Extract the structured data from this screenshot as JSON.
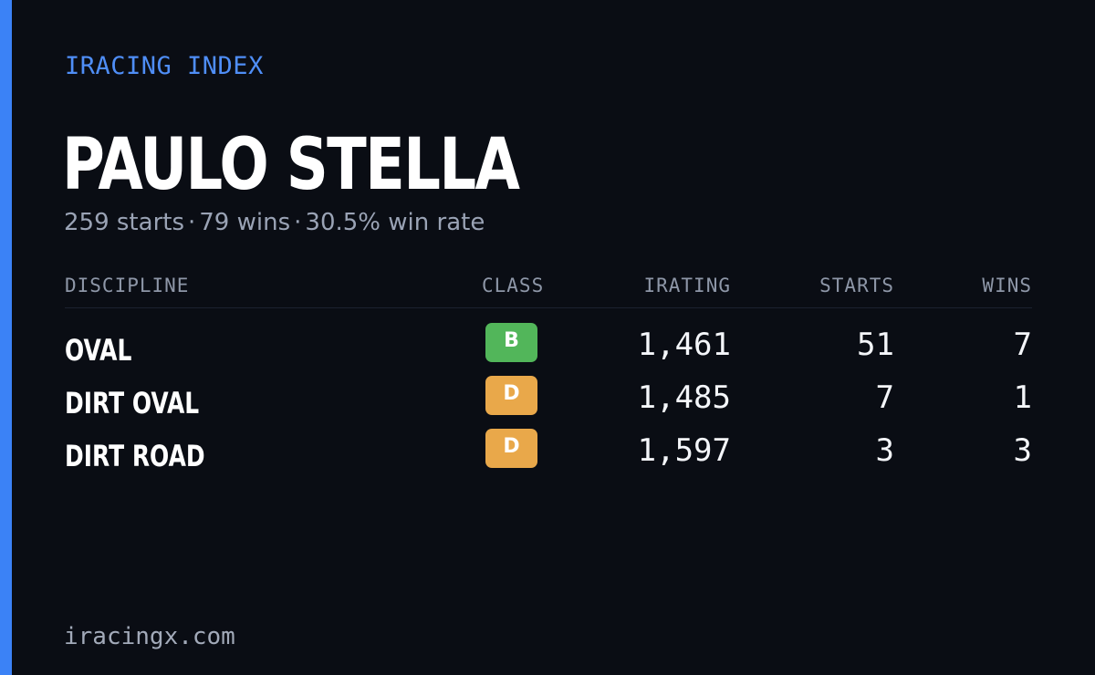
{
  "brand": "IRACING INDEX",
  "driver": {
    "name": "PAULO STELLA",
    "starts": "259 starts",
    "wins": "79 wins",
    "win_rate": "30.5% win rate",
    "separator": "·"
  },
  "table": {
    "headers": {
      "discipline": "DISCIPLINE",
      "class": "CLASS",
      "irating": "IRATING",
      "starts": "STARTS",
      "wins": "WINS"
    },
    "rows": [
      {
        "discipline": "OVAL",
        "class": "B",
        "irating": "1,461",
        "starts": "51",
        "wins": "7"
      },
      {
        "discipline": "DIRT OVAL",
        "class": "D",
        "irating": "1,485",
        "starts": "7",
        "wins": "1"
      },
      {
        "discipline": "DIRT ROAD",
        "class": "D",
        "irating": "1,597",
        "starts": "3",
        "wins": "3"
      }
    ]
  },
  "footer": "iracingx.com",
  "colors": {
    "background": "#0a0d14",
    "accent": "#3b82f6",
    "class_b": "#52b65a",
    "class_d": "#e9a84a"
  }
}
